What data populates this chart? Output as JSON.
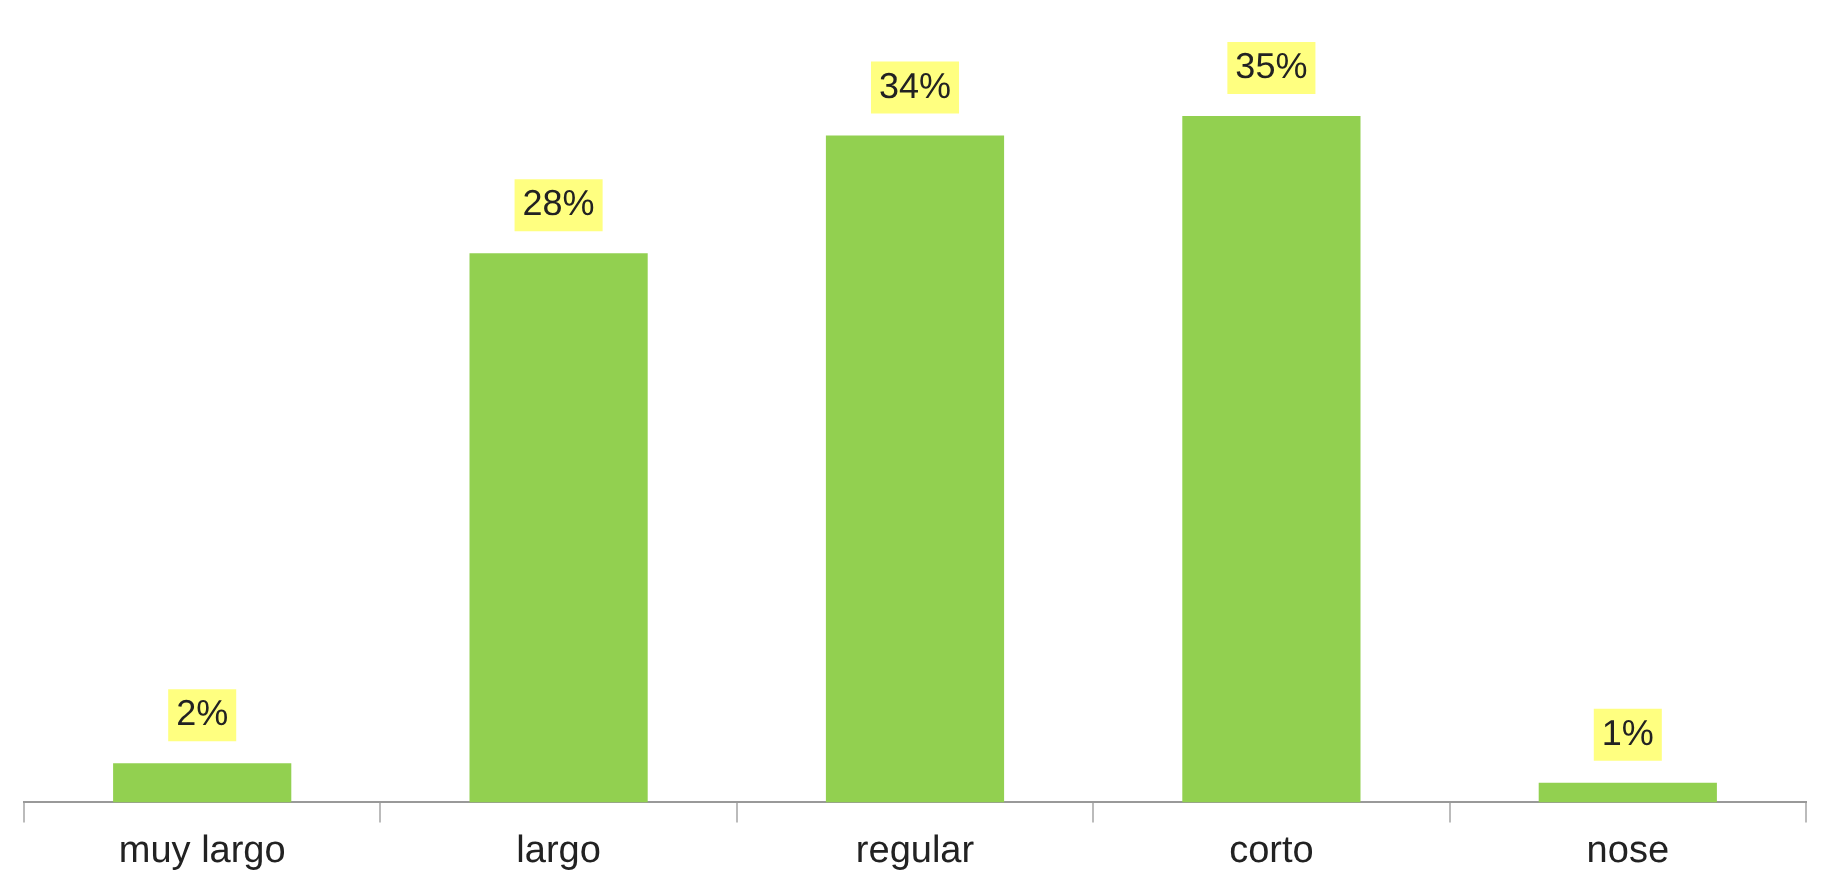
{
  "chart_data": {
    "type": "bar",
    "categories": [
      "muy largo",
      "largo",
      "regular",
      "corto",
      "nose"
    ],
    "values": [
      2,
      28,
      34,
      35,
      1
    ],
    "value_labels": [
      "2%",
      "28%",
      "34%",
      "35%",
      "1%"
    ],
    "color": "#92d050",
    "grid": false,
    "legend": false
  }
}
